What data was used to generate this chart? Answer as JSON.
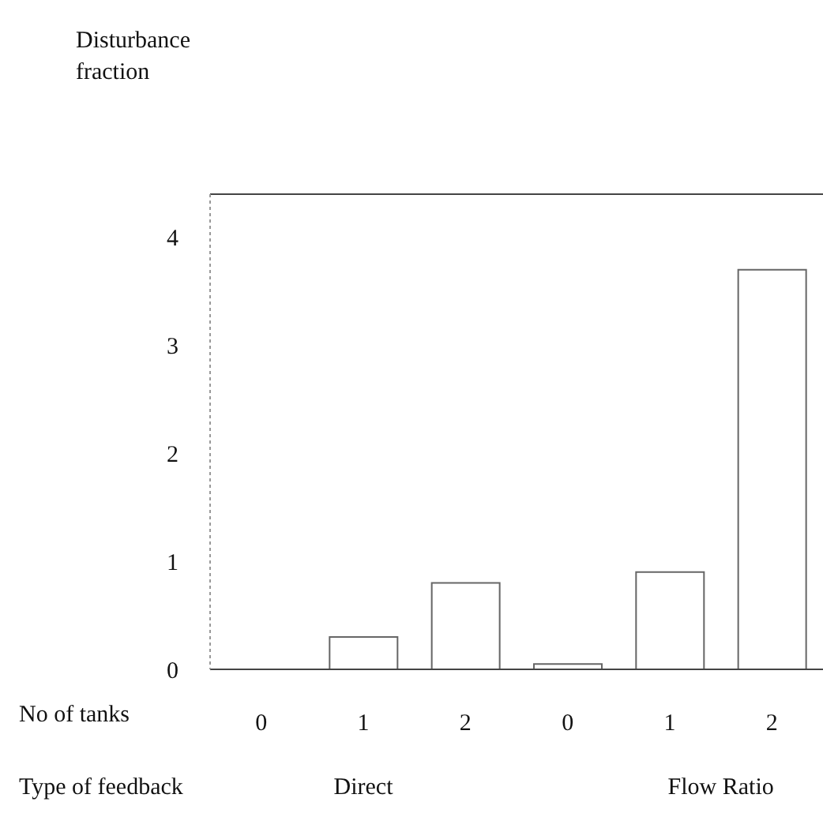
{
  "chart_data": {
    "type": "bar",
    "ylabel": "Disturbance fraction",
    "xlabel": "No of tanks",
    "categories": [
      "0",
      "1",
      "2",
      "0",
      "1",
      "2"
    ],
    "values": [
      0,
      0.3,
      0.8,
      0.05,
      0.9,
      3.7
    ],
    "color": "#666666",
    "ylim": [
      0,
      4.4
    ],
    "yticks": [
      0,
      1,
      2,
      3,
      4
    ],
    "annotations": [
      "Type of feedback",
      "Direct",
      "Flow Ratio"
    ]
  }
}
